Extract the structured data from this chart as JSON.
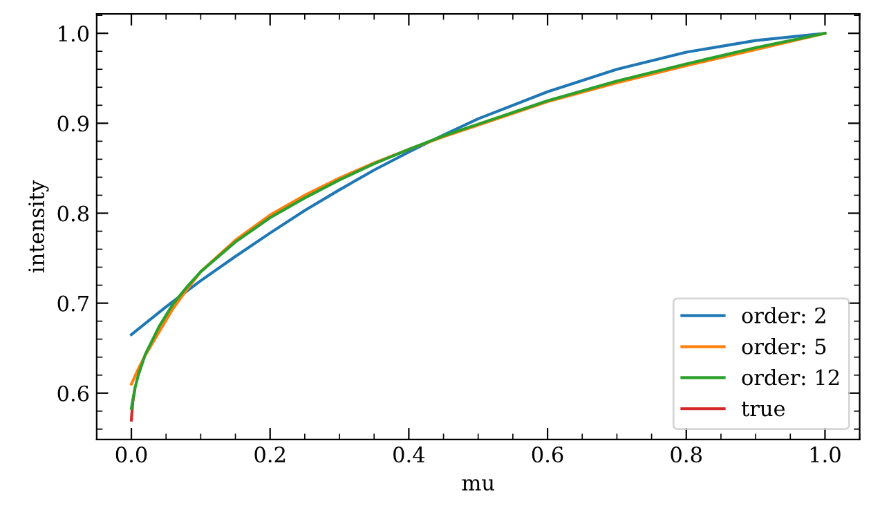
{
  "chart_data": {
    "type": "line",
    "xlabel": "mu",
    "ylabel": "intensity",
    "xlim": [
      -0.05,
      1.05
    ],
    "ylim": [
      0.5485,
      1.0215
    ],
    "xticks": [
      {
        "value": 0,
        "label": "0.0"
      },
      0.2,
      0.4,
      0.6,
      0.8,
      {
        "value": 1,
        "label": "1.0"
      }
    ],
    "yticks": [
      0.6,
      0.7,
      0.8,
      0.9,
      {
        "value": 1,
        "label": "1.0"
      }
    ],
    "grid": false,
    "legend": "bottom right",
    "series": [
      {
        "name": "order: 2",
        "color": "#1f77b4",
        "x": [
          0,
          0.05,
          0.1,
          0.15,
          0.2,
          0.25,
          0.3,
          0.35,
          0.4,
          0.45,
          0.5,
          0.6,
          0.7,
          0.8,
          0.9,
          1.0
        ],
        "values": [
          0.665,
          0.696,
          0.725,
          0.752,
          0.778,
          0.803,
          0.826,
          0.848,
          0.868,
          0.887,
          0.905,
          0.935,
          0.96,
          0.979,
          0.992,
          1.0
        ]
      },
      {
        "name": "order: 5",
        "color": "#ff7f0e",
        "x": [
          0,
          0.01,
          0.02,
          0.04,
          0.06,
          0.08,
          0.1,
          0.15,
          0.2,
          0.25,
          0.3,
          0.35,
          0.4,
          0.45,
          0.5,
          0.6,
          0.7,
          0.8,
          0.9,
          1.0
        ],
        "values": [
          0.61,
          0.627,
          0.642,
          0.668,
          0.694,
          0.715,
          0.735,
          0.77,
          0.798,
          0.82,
          0.839,
          0.856,
          0.871,
          0.885,
          0.898,
          0.924,
          0.945,
          0.964,
          0.982,
          1.0
        ]
      },
      {
        "name": "order: 12",
        "color": "#2ca02c",
        "x": [
          0,
          0.005,
          0.01,
          0.02,
          0.04,
          0.06,
          0.08,
          0.1,
          0.15,
          0.2,
          0.25,
          0.3,
          0.35,
          0.4,
          0.45,
          0.5,
          0.6,
          0.7,
          0.8,
          0.9,
          1.0
        ],
        "values": [
          0.583,
          0.605,
          0.62,
          0.643,
          0.674,
          0.699,
          0.718,
          0.735,
          0.768,
          0.795,
          0.817,
          0.837,
          0.855,
          0.871,
          0.886,
          0.899,
          0.925,
          0.947,
          0.966,
          0.984,
          1.0
        ]
      },
      {
        "name": "true",
        "color": "#d62728",
        "x": [
          0,
          0.002,
          0.005
        ],
        "values": [
          0.57,
          0.59,
          0.604
        ]
      }
    ]
  }
}
